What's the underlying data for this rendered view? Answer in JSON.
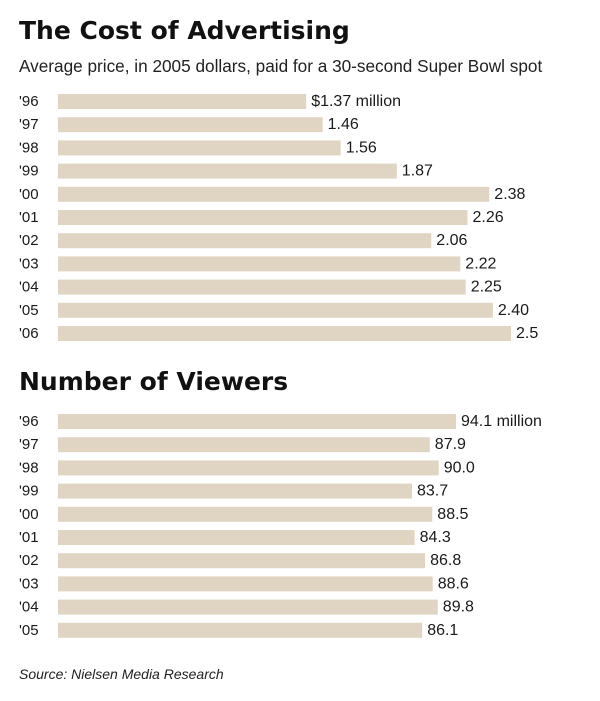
{
  "colors": {
    "bar": "#e0d4c3",
    "text": "#1a1a1a"
  },
  "source": "Source: Nielsen Media Research",
  "chart_data": [
    {
      "type": "bar",
      "orientation": "horizontal",
      "title": "The Cost of Advertising",
      "subtitle": "Average price, in 2005 dollars, paid for a 30-second Super Bowl spot",
      "categories": [
        "'96",
        "'97",
        "'98",
        "'99",
        "'00",
        "'01",
        "'02",
        "'03",
        "'04",
        "'05",
        "'06"
      ],
      "values": [
        1.37,
        1.46,
        1.56,
        1.87,
        2.38,
        2.26,
        2.06,
        2.22,
        2.25,
        2.4,
        2.5
      ],
      "value_labels": [
        "$1.37 million",
        "1.46",
        "1.56",
        "1.87",
        "2.38",
        "2.26",
        "2.06",
        "2.22",
        "2.25",
        "2.40",
        "2.5"
      ],
      "unit": "million dollars",
      "xlim": [
        0,
        2.5
      ]
    },
    {
      "type": "bar",
      "orientation": "horizontal",
      "title": "Number of Viewers",
      "categories": [
        "'96",
        "'97",
        "'98",
        "'99",
        "'00",
        "'01",
        "'02",
        "'03",
        "'04",
        "'05"
      ],
      "values": [
        94.1,
        87.9,
        90.0,
        83.7,
        88.5,
        84.3,
        86.8,
        88.6,
        89.8,
        86.1
      ],
      "value_labels": [
        "94.1 million",
        "87.9",
        "90.0",
        "83.7",
        "88.5",
        "84.3",
        "86.8",
        "88.6",
        "89.8",
        "86.1"
      ],
      "unit": "million viewers",
      "xlim": [
        0,
        94.1
      ]
    }
  ]
}
